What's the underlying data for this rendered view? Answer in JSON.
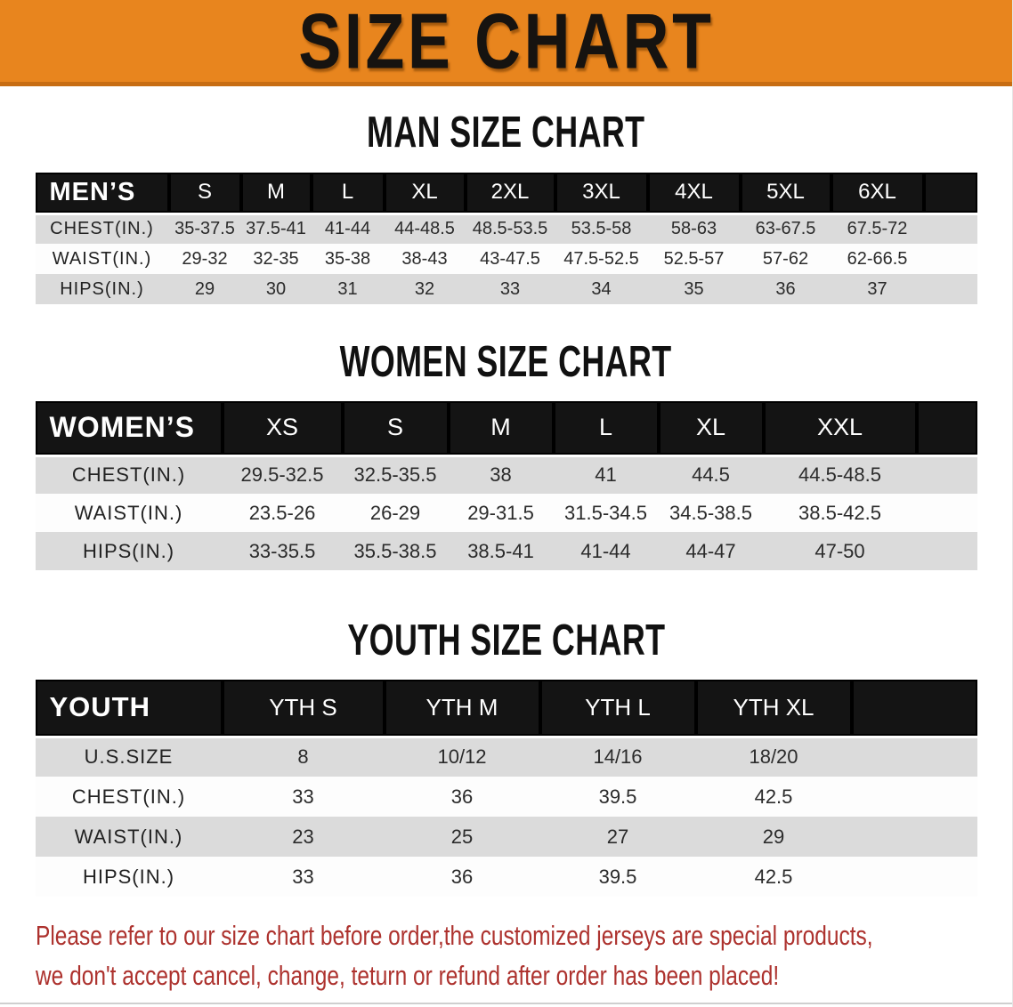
{
  "banner": {
    "title": "SIZE CHART",
    "bg_color": "#e8851e"
  },
  "colors": {
    "header_bar": "#141414",
    "row_stripe": "#dbdbdb",
    "row_plain": "#fdfdfd",
    "disclaimer_red": "#ad322e"
  },
  "sections": [
    {
      "title": "MAN SIZE CHART",
      "header_label": "MEN’S",
      "columns": [
        "S",
        "M",
        "L",
        "XL",
        "2XL",
        "3XL",
        "4XL",
        "5XL",
        "6XL"
      ],
      "rows": [
        {
          "label": "CHEST(IN.)",
          "values": [
            "35-37.5",
            "37.5-41",
            "41-44",
            "44-48.5",
            "48.5-53.5",
            "53.5-58",
            "58-63",
            "63-67.5",
            "67.5-72"
          ]
        },
        {
          "label": "WAIST(IN.)",
          "values": [
            "29-32",
            "32-35",
            "35-38",
            "38-43",
            "43-47.5",
            "47.5-52.5",
            "52.5-57",
            "57-62",
            "62-66.5"
          ]
        },
        {
          "label": "HIPS(IN.)",
          "values": [
            "29",
            "30",
            "31",
            "32",
            "33",
            "34",
            "35",
            "36",
            "37"
          ]
        }
      ]
    },
    {
      "title": "WOMEN SIZE CHART",
      "header_label": "WOMEN’S",
      "columns": [
        "XS",
        "S",
        "M",
        "L",
        "XL",
        "XXL"
      ],
      "rows": [
        {
          "label": "CHEST(IN.)",
          "values": [
            "29.5-32.5",
            "32.5-35.5",
            "38",
            "41",
            "44.5",
            "44.5-48.5"
          ]
        },
        {
          "label": "WAIST(IN.)",
          "values": [
            "23.5-26",
            "26-29",
            "29-31.5",
            "31.5-34.5",
            "34.5-38.5",
            "38.5-42.5"
          ]
        },
        {
          "label": "HIPS(IN.)",
          "values": [
            "33-35.5",
            "35.5-38.5",
            "38.5-41",
            "41-44",
            "44-47",
            "47-50"
          ]
        }
      ]
    },
    {
      "title": "YOUTH SIZE CHART",
      "header_label": "YOUTH",
      "columns": [
        "YTH S",
        "YTH M",
        "YTH L",
        "YTH XL"
      ],
      "rows": [
        {
          "label": "U.S.SIZE",
          "values": [
            "8",
            "10/12",
            "14/16",
            "18/20"
          ]
        },
        {
          "label": "CHEST(IN.)",
          "values": [
            "33",
            "36",
            "39.5",
            "42.5"
          ]
        },
        {
          "label": "WAIST(IN.)",
          "values": [
            "23",
            "25",
            "27",
            "29"
          ]
        },
        {
          "label": "HIPS(IN.)",
          "values": [
            "33",
            "36",
            "39.5",
            "42.5"
          ]
        }
      ]
    }
  ],
  "disclaimer": {
    "line1": "Please refer to our size chart before order,the customized jerseys are special products,",
    "line2": "we don't accept cancel, change, teturn or refund after order has been placed!"
  }
}
